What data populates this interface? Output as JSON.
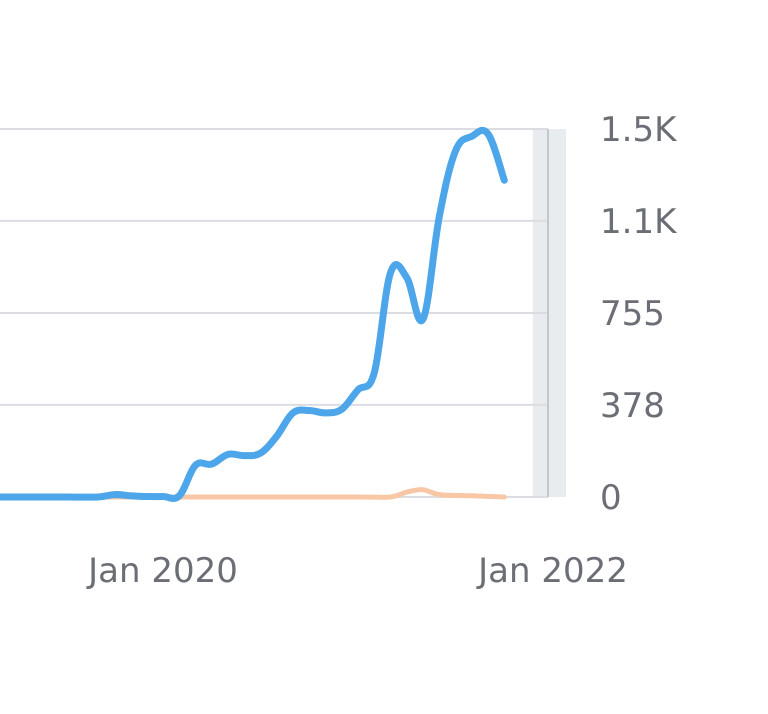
{
  "chart_data": {
    "type": "line",
    "title": "",
    "xlabel": "",
    "ylabel": "",
    "x_ticks": [
      {
        "label": "Jan 2020",
        "x": "2020-01"
      },
      {
        "label": "Jan 2022",
        "x": "2022-01"
      }
    ],
    "y_ticks": [
      "0",
      "378",
      "755",
      "1.1K",
      "1.5K"
    ],
    "y_tick_values": [
      0,
      378,
      755,
      1133,
      1510
    ],
    "ylim": [
      0,
      1510
    ],
    "xlim": [
      "2018-09",
      "2022-01"
    ],
    "grid": true,
    "y_axis_side": "right",
    "highlight_period": [
      "2021-12",
      "2022-01"
    ],
    "colors": {
      "primary": "#4ea6ea",
      "secondary": "#f8c7a6",
      "grid": "#dcdde2",
      "highlight": "#e8ecee",
      "tick_text": "#6b6e75"
    },
    "series": [
      {
        "color": "#4ea6ea",
        "points": [
          [
            "2018-09",
            0
          ],
          [
            "2018-11",
            0
          ],
          [
            "2019-01",
            0
          ],
          [
            "2019-03",
            0
          ],
          [
            "2019-05",
            0
          ],
          [
            "2019-07",
            0
          ],
          [
            "2019-09",
            0
          ],
          [
            "2019-10",
            10
          ],
          [
            "2019-11",
            5
          ],
          [
            "2019-12",
            2
          ],
          [
            "2020-01",
            2
          ],
          [
            "2020-02",
            5
          ],
          [
            "2020-03",
            130
          ],
          [
            "2020-04",
            135
          ],
          [
            "2020-05",
            175
          ],
          [
            "2020-06",
            170
          ],
          [
            "2020-07",
            180
          ],
          [
            "2020-08",
            250
          ],
          [
            "2020-09",
            345
          ],
          [
            "2020-10",
            355
          ],
          [
            "2020-11",
            345
          ],
          [
            "2020-12",
            360
          ],
          [
            "2021-01",
            440
          ],
          [
            "2021-02",
            510
          ],
          [
            "2021-03",
            920
          ],
          [
            "2021-04",
            900
          ],
          [
            "2021-05",
            730
          ],
          [
            "2021-06",
            1150
          ],
          [
            "2021-07",
            1420
          ],
          [
            "2021-08",
            1480
          ],
          [
            "2021-09",
            1490
          ],
          [
            "2021-10",
            1300
          ]
        ]
      },
      {
        "color": "#f8c7a6",
        "points": [
          [
            "2018-09",
            0
          ],
          [
            "2019-06",
            0
          ],
          [
            "2019-12",
            0
          ],
          [
            "2020-06",
            0
          ],
          [
            "2021-01",
            0
          ],
          [
            "2021-03",
            0
          ],
          [
            "2021-04",
            20
          ],
          [
            "2021-05",
            30
          ],
          [
            "2021-06",
            10
          ],
          [
            "2021-08",
            5
          ],
          [
            "2021-10",
            0
          ]
        ]
      }
    ]
  }
}
